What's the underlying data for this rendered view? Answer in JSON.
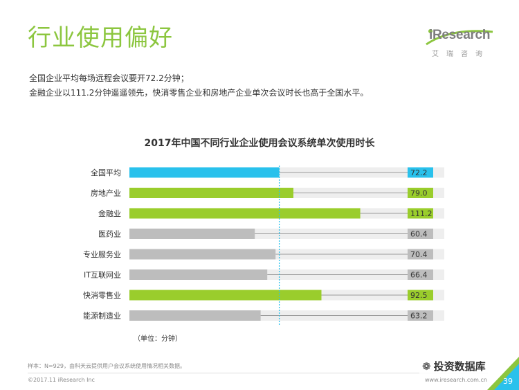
{
  "header": {
    "title": "行业使用偏好",
    "brand_name": "iResearch",
    "brand_subtitle": "艾瑞咨询"
  },
  "intro": {
    "line1": "全国企业平均每场远程会议要开72.2分钟；",
    "line2": "金融企业以111.2分钟遥遥领先，快消零售企业和房地产企业单次会议时长也高于全国水平。"
  },
  "chart_data": {
    "type": "bar",
    "orientation": "horizontal",
    "title": "2017年中国不同行业企业使用会议系统单次使用时长",
    "categories": [
      "全国平均",
      "房地产业",
      "金融业",
      "医药业",
      "专业服务业",
      "IT互联网业",
      "快消零售业",
      "能源制造业"
    ],
    "values": [
      72.2,
      79.0,
      111.2,
      60.4,
      70.4,
      66.4,
      92.5,
      63.2
    ],
    "labels": [
      "72.2",
      "79.0",
      "111.2",
      "60.4",
      "70.4",
      "66.4",
      "92.5",
      "63.2"
    ],
    "highlight": [
      "average",
      "above",
      "above",
      "below",
      "below",
      "below",
      "above",
      "below"
    ],
    "reference_line": 72.2,
    "xlim": [
      0,
      140
    ],
    "unit_label": "（单位：分钟）",
    "colors": {
      "average": "#29c1ec",
      "above": "#9acd2c",
      "below": "#bdbdbd",
      "track": "#eeeeee",
      "reference": "#29c1ec"
    }
  },
  "footer": {
    "note": "样本：N=929，由科天云提供用户会议系统使用情况相关数据。",
    "copyright": "©2017.11 iResearch Inc",
    "site": "www.iresearch.com.cn",
    "watermark": "投资数据库",
    "page_number": "39"
  }
}
